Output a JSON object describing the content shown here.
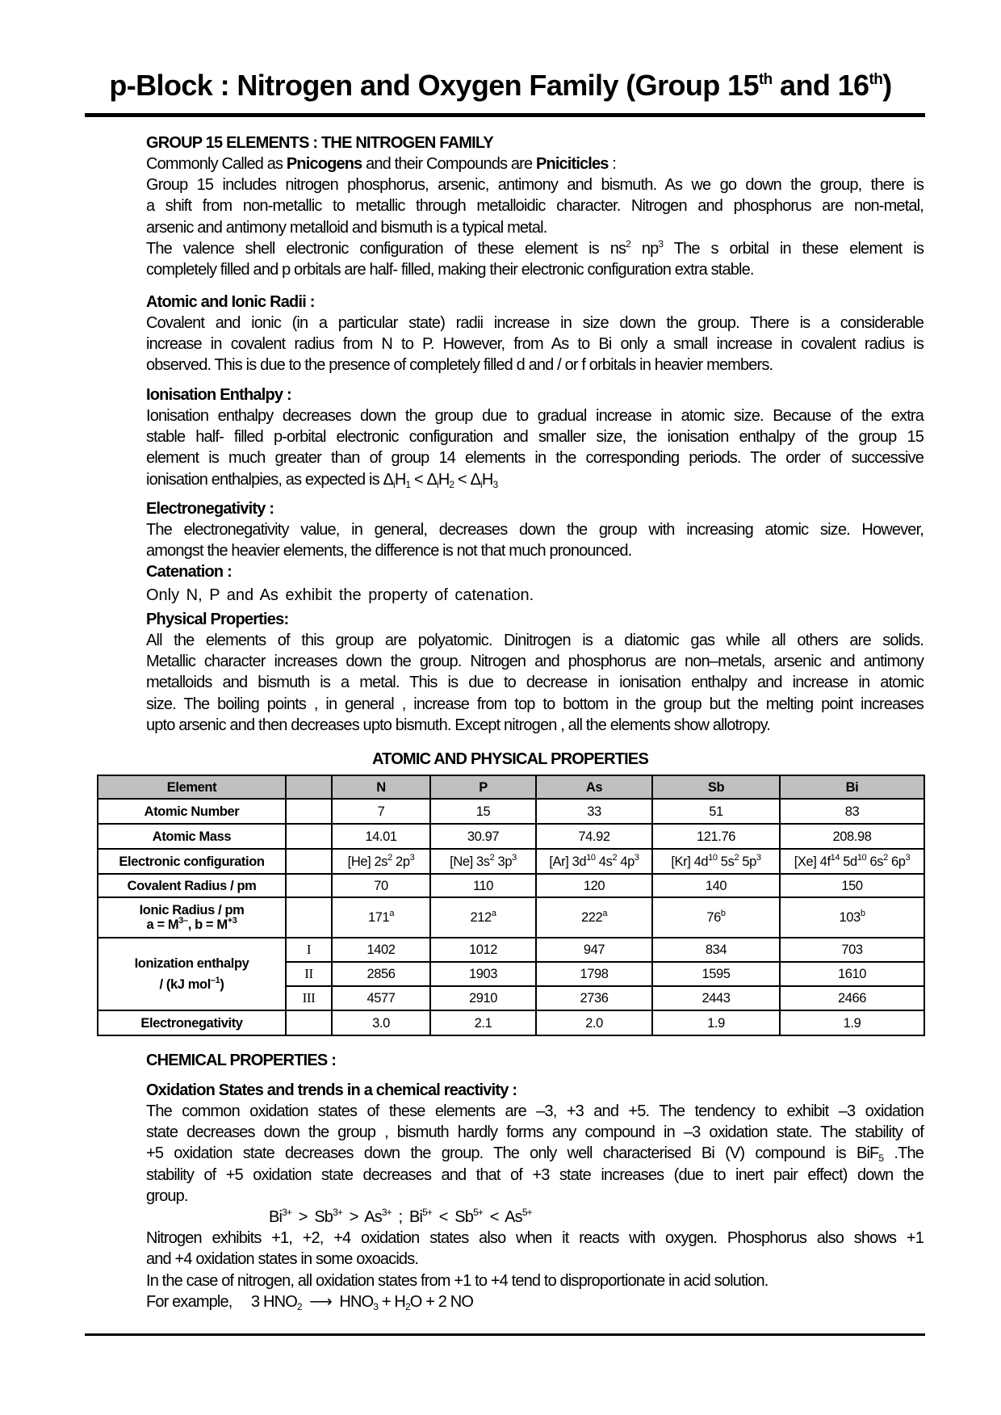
{
  "title": {
    "main": "p-Block : Nitrogen and Oxygen Family (Group 15",
    "sup1": "th",
    "mid": " and 16",
    "sup2": "th",
    "end": ")"
  },
  "sections": [
    {
      "heading": "GROUP 15 ELEMENTS : THE NITROGEN FAMILY",
      "paras": [
        [
          [
            "Commonly Called as ",
            [
              "Pnicogens",
              "b"
            ],
            " and their Compounds are ",
            [
              "Pniciticles",
              "b"
            ],
            " :"
          ]
        ],
        [
          "Group 15 includes nitrogen phosphorus, arsenic, antimony and bismuth. As we go down the group, there is",
          "a shift from non-metallic to metallic through metalloidic character. Nitrogen and phosphorus are non-metal,",
          "arsenic and antimony metalloid and bismuth is a typical metal."
        ],
        [
          [
            "The valence shell electronic configuration of  these element is ns",
            [
              "2",
              "sup"
            ],
            " np",
            [
              "3",
              "sup"
            ],
            " The s orbital in these element is"
          ],
          "completely filled and p orbitals are half- filled, making their electronic configuration extra stable."
        ]
      ]
    },
    {
      "heading": "Atomic and Ionic Radii :",
      "paras": [
        [
          "Covalent and ionic (in a particular state) radii increase in size down the group. There is a considerable",
          "increase in covalent radius from N to P. However, from As to Bi only a small increase in covalent radius is",
          "observed. This is due to the presence of completely filled  d and / or f orbitals in heavier members."
        ]
      ]
    },
    {
      "heading": "Ionisation Enthalpy :",
      "paras": [
        [
          "Ionisation enthalpy decreases down the group due to gradual increase in atomic size. Because of the extra",
          "stable half- filled p-orbital electronic configuration and smaller size, the ionisation enthalpy of the group 15",
          "element is much greater than of group 14 elements in the corresponding periods. The order of successive",
          [
            "ionisation enthalpies, as expected is Δ",
            [
              "i",
              "sub"
            ],
            "H",
            [
              "1",
              "sub"
            ],
            " < Δ",
            [
              "i",
              "sub"
            ],
            "H",
            [
              "2",
              "sub"
            ],
            " < Δ",
            [
              "i",
              "sub"
            ],
            "H",
            [
              "3",
              "sub"
            ]
          ]
        ]
      ]
    },
    {
      "heading": "Electronegativity :",
      "paras": [
        [
          "The electronegativity value, in general, decreases down the group with increasing atomic size. However,",
          "amongst the heavier elements, the difference is not that much pronounced."
        ]
      ]
    },
    {
      "heading": "Catenation  :",
      "paras": [
        [
          "Only N, P and As exhibit the property of catenation."
        ]
      ]
    },
    {
      "heading": "Physical Properties:",
      "paras": [
        [
          "All the elements of this group are polyatomic. Dinitrogen is a diatomic gas while all others are solids.",
          "Metallic character increases down the group. Nitrogen and phosphorus are non–metals, arsenic and antimony",
          "metalloids and bismuth is a metal. This is due to decrease in ionisation enthalpy and increase in atomic",
          "size. The boiling points , in general , increase from top to bottom in the group but the melting point increases",
          "upto arsenic and then decreases upto bismuth. Except nitrogen , all the elements show allotropy."
        ]
      ]
    }
  ],
  "table": {
    "title": "ATOMIC AND PHYSICAL PROPERTIES",
    "header": [
      "Element",
      "",
      "N",
      "P",
      "As",
      "Sb",
      "Bi"
    ],
    "rows": [
      {
        "label": [
          "Atomic Number"
        ],
        "values": [
          "7",
          "15",
          "33",
          "51",
          "83"
        ]
      },
      {
        "label": [
          "Atomic Mass"
        ],
        "values": [
          "14.01",
          "30.97",
          "74.92",
          "121.76",
          "208.98"
        ]
      },
      {
        "label": [
          "Electronic configuration"
        ],
        "values": [
          [
            "[He] 2s",
            [
              "2",
              "sup"
            ],
            " 2p",
            [
              "3",
              "sup"
            ]
          ],
          [
            "[Ne] 3s",
            [
              "2",
              "sup"
            ],
            " 3p",
            [
              "3",
              "sup"
            ]
          ],
          [
            "[Ar] 3d",
            [
              "10",
              "sup"
            ],
            " 4s",
            [
              "2",
              "sup"
            ],
            " 4p",
            [
              "3",
              "sup"
            ]
          ],
          [
            "[Kr] 4d",
            [
              "10",
              "sup"
            ],
            " 5s",
            [
              "2",
              "sup"
            ],
            " 5p",
            [
              "3",
              "sup"
            ]
          ],
          [
            "[Xe] 4f",
            [
              "14",
              "sup"
            ],
            " 5d",
            [
              "10",
              "sup"
            ],
            " 6s",
            [
              "2",
              "sup"
            ],
            " 6p",
            [
              "3",
              "sup"
            ]
          ]
        ]
      },
      {
        "label": [
          "Covalent Radius / pm"
        ],
        "values": [
          "70",
          "110",
          "120",
          "140",
          "150"
        ]
      },
      {
        "label": [
          "Ionic Radius / pm",
          [
            "a = M",
            [
              "3–",
              "sup"
            ],
            ", b = M",
            [
              "+3",
              "sup"
            ]
          ]
        ],
        "values": [
          [
            "171",
            [
              "a",
              "sup"
            ]
          ],
          [
            "212",
            [
              "a",
              "sup"
            ]
          ],
          [
            "222",
            [
              "a",
              "sup"
            ]
          ],
          [
            "76",
            [
              "b",
              "sup"
            ]
          ],
          [
            "103",
            [
              "b",
              "sup"
            ]
          ]
        ]
      }
    ],
    "ionization": {
      "label": [
        "Ionization enthalpy",
        [
          "/ (kJ mol",
          [
            "–1",
            "sup"
          ],
          ")"
        ]
      ],
      "rows": [
        {
          "stage": "I",
          "values": [
            "1402",
            "1012",
            "947",
            "834",
            "703"
          ]
        },
        {
          "stage": "II",
          "values": [
            "2856",
            "1903",
            "1798",
            "1595",
            "1610"
          ]
        },
        {
          "stage": "III",
          "values": [
            "4577",
            "2910",
            "2736",
            "2443",
            "2466"
          ]
        }
      ]
    },
    "electronegativity": {
      "label": [
        "Electronegativity"
      ],
      "values": [
        "3.0",
        "2.1",
        "2.0",
        "1.9",
        "1.9"
      ]
    }
  },
  "chemical": {
    "heading": "CHEMICAL PROPERTIES :",
    "subheading": "Oxidation States and trends in a chemical reactivity :",
    "paras": [
      [
        "The common oxidation states of these elements are –3, +3 and +5. The tendency to exhibit –3 oxidation",
        "state decreases down the group , bismuth hardly forms any compound in –3 oxidation state. The stability of",
        [
          "+5 oxidation state decreases down the group. The only well characterised Bi (V) compound is BiF",
          [
            "5",
            "sub"
          ],
          " .The"
        ],
        "stability of +5 oxidation state decreases and that of +3 state increases (due to inert pair effect) down the",
        "group."
      ],
      [
        [
          "Bi",
          [
            "3+",
            "sup"
          ],
          "  >  Sb",
          [
            "3+",
            "sup"
          ],
          "  >  As",
          [
            "3+",
            "sup"
          ],
          " ;    Bi",
          [
            "5+",
            "sup"
          ],
          "  <  Sb",
          [
            "5+",
            "sup"
          ],
          "  <  As",
          [
            "5+",
            "sup"
          ]
        ]
      ],
      [
        "Nitrogen exhibits +1, +2, +4 oxidation states also when it reacts with oxygen. Phosphorus also shows +1",
        "and +4 oxidation states in some oxoacids."
      ],
      [
        "In the case of nitrogen, all oxidation states from +1 to +4 tend to disproportionate in acid solution."
      ],
      [
        [
          "For example,     3 HNO",
          [
            "2",
            "sub"
          ],
          "  ⟶  HNO",
          [
            "3",
            "sub"
          ],
          " + H",
          [
            "2",
            "sub"
          ],
          "O + 2 NO"
        ]
      ]
    ]
  }
}
